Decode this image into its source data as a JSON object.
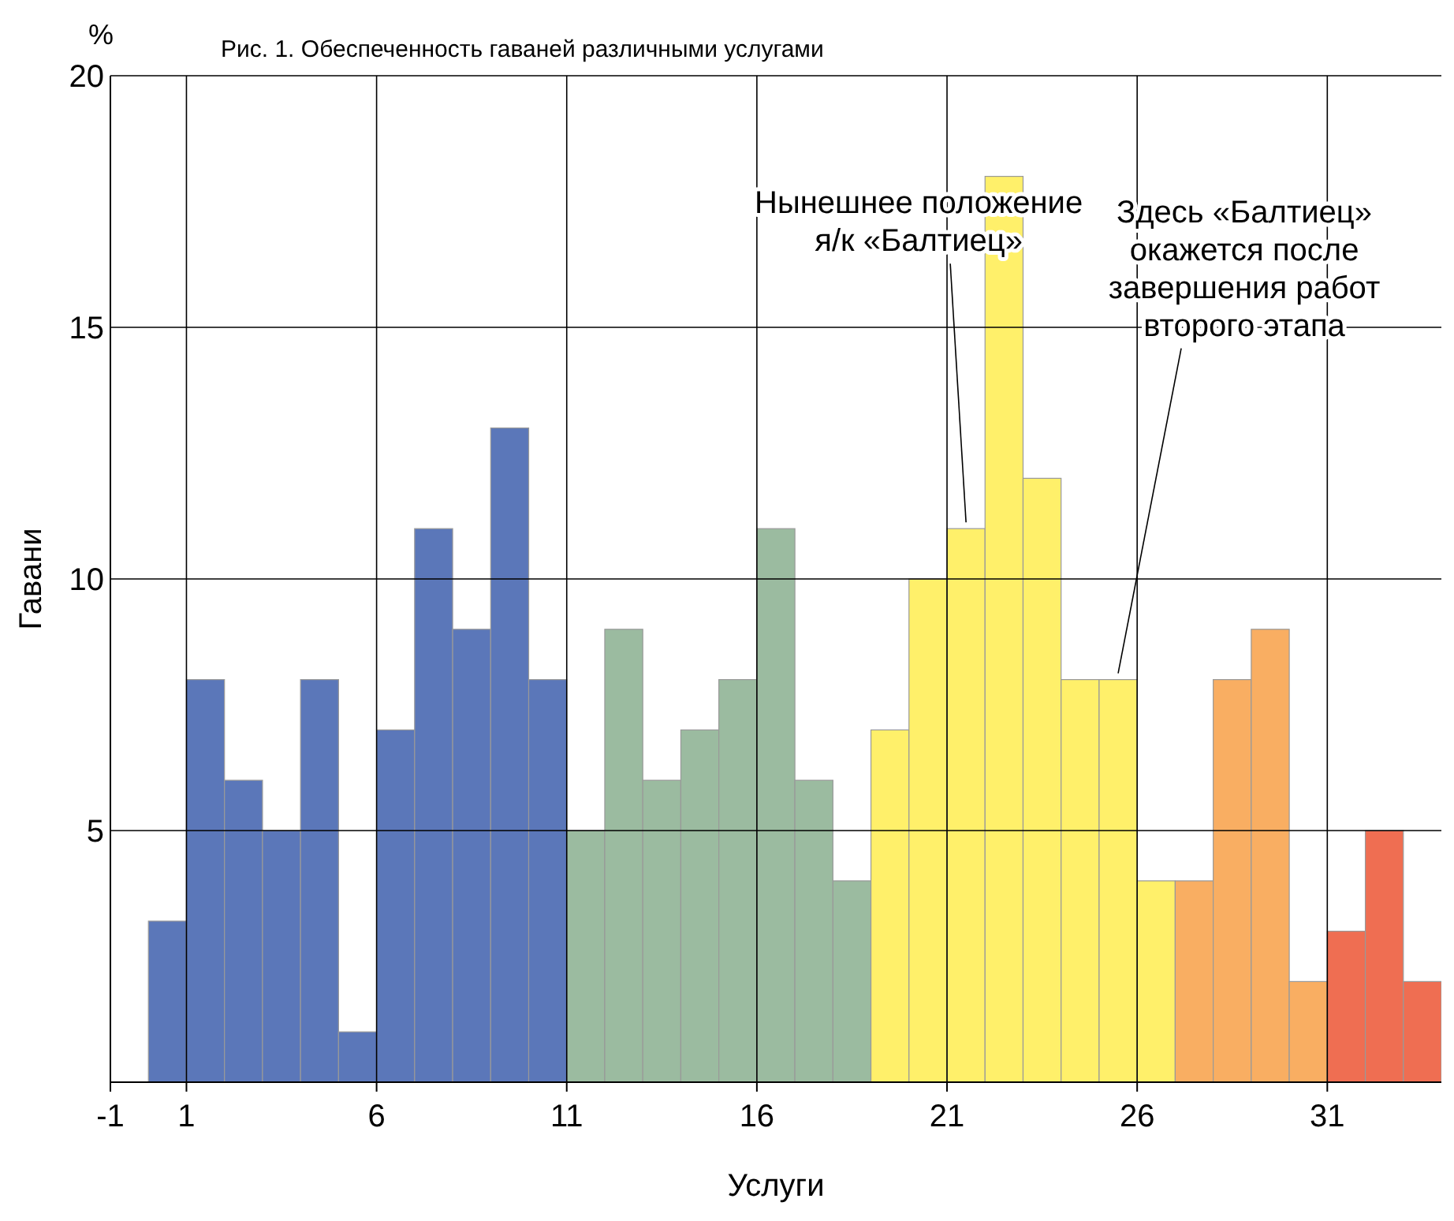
{
  "chart_data": {
    "type": "histogram",
    "title": "Рис. 1. Обеспеченность гаваней различными услугами",
    "xlabel": "Услуги",
    "ylabel": "Гавани",
    "bins": [
      0,
      1,
      2,
      3,
      4,
      5,
      6,
      7,
      8,
      9,
      10,
      11,
      12,
      13,
      14,
      15,
      16,
      17,
      18,
      19,
      20,
      21,
      22,
      23,
      24,
      25,
      26,
      27,
      28,
      29,
      30,
      31,
      32,
      33,
      34
    ],
    "values": [
      3.2,
      8,
      6,
      5,
      8,
      1,
      7,
      11,
      9,
      13,
      8,
      5,
      9,
      6,
      7,
      8,
      11,
      6,
      4,
      7,
      10,
      11,
      18,
      12,
      8,
      8,
      4,
      4,
      8,
      9,
      2,
      3,
      5,
      2
    ],
    "colors": [
      "#5b77b9",
      "#5b77b9",
      "#5b77b9",
      "#5b77b9",
      "#5b77b9",
      "#5b77b9",
      "#5b77b9",
      "#5b77b9",
      "#5b77b9",
      "#5b77b9",
      "#5b77b9",
      "#9bbba0",
      "#9bbba0",
      "#9bbba0",
      "#9bbba0",
      "#9bbba0",
      "#9bbba0",
      "#9bbba0",
      "#9bbba0",
      "#fff06a",
      "#fff06a",
      "#fff06a",
      "#fff06a",
      "#fff06a",
      "#fff06a",
      "#fff06a",
      "#fff06a",
      "#f9ae62",
      "#f9ae62",
      "#f9ae62",
      "#f9ae62",
      "#ef6e52",
      "#ef6e52",
      "#ef6e52"
    ],
    "xlim": [
      -1,
      34
    ],
    "ylim": [
      0,
      20
    ],
    "xticks": [
      -1,
      1,
      6,
      11,
      16,
      21,
      26,
      31
    ],
    "yticks": [
      5,
      10,
      15,
      20
    ],
    "grid": true,
    "annotations": [
      "%",
      {
        "text": "Нынешнее положение\nя/к «Балтиец»",
        "x": 21.5,
        "y": 11
      },
      {
        "text": "Здесь «Балтиец»\nокажется после\nзавершения работ\nвторого этапа",
        "x": 25.5,
        "y": 8
      }
    ]
  }
}
